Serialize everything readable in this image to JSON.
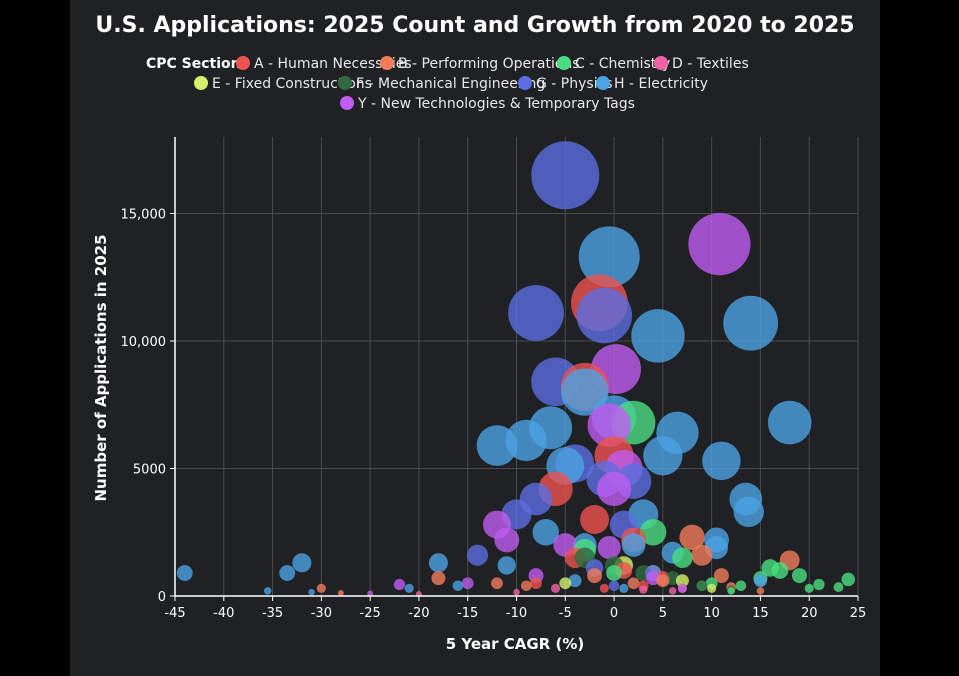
{
  "chart_data": {
    "type": "scatter",
    "title": "U.S. Applications: 2025 Count and Growth from 2020 to 2025",
    "xlabel": "5 Year CAGR (%)",
    "ylabel": "Number of Applications in 2025",
    "xlim": [
      -45,
      25
    ],
    "ylim": [
      0,
      18000
    ],
    "x_ticks": [
      -45,
      -40,
      -35,
      -30,
      -25,
      -20,
      -15,
      -10,
      -5,
      0,
      5,
      10,
      15,
      20,
      25
    ],
    "y_ticks": [
      0,
      5000,
      10000,
      15000
    ],
    "y_tick_labels": [
      "0",
      "5000",
      "10,000",
      "15,000"
    ],
    "x_tick_labels": [
      "-45",
      "-40",
      "-35",
      "-30",
      "-25",
      "-20",
      "-15",
      "-10",
      "-5",
      "0",
      "5",
      "10",
      "15",
      "20",
      "25"
    ],
    "grid": true,
    "legend_title": "CPC Section",
    "legend_placement": "top",
    "size_encodes": "Number of Applications in 2025",
    "series": [
      {
        "name": "A - Human Necessities",
        "color": "#ef5350",
        "points": [
          [
            -1.5,
            11500
          ],
          [
            -3,
            8200
          ],
          [
            0,
            5500
          ],
          [
            -6,
            4200
          ],
          [
            -2,
            3000
          ],
          [
            2,
            2200
          ],
          [
            -4,
            1500
          ],
          [
            1,
            1000
          ],
          [
            5,
            700
          ],
          [
            -8,
            500
          ],
          [
            3,
            400
          ],
          [
            -1,
            300
          ]
        ]
      },
      {
        "name": "B - Performing Operations",
        "color": "#f07c5a",
        "points": [
          [
            8,
            2300
          ],
          [
            9,
            1600
          ],
          [
            18,
            1400
          ],
          [
            -30,
            300
          ],
          [
            -28,
            120
          ],
          [
            -18,
            700
          ],
          [
            -12,
            500
          ],
          [
            -9,
            400
          ],
          [
            -2,
            800
          ],
          [
            2,
            500
          ],
          [
            5,
            600
          ],
          [
            11,
            800
          ],
          [
            12,
            350
          ],
          [
            15,
            200
          ],
          [
            7,
            300
          ]
        ]
      },
      {
        "name": "C - Chemistry",
        "color": "#4ade80",
        "points": [
          [
            2,
            6800
          ],
          [
            4,
            2500
          ],
          [
            7,
            1500
          ],
          [
            10,
            500
          ],
          [
            13,
            400
          ],
          [
            15,
            700
          ],
          [
            16,
            1100
          ],
          [
            17,
            1000
          ],
          [
            19,
            800
          ],
          [
            20,
            300
          ],
          [
            21,
            450
          ],
          [
            23,
            350
          ],
          [
            24,
            650
          ],
          [
            -3,
            1800
          ],
          [
            0,
            900
          ],
          [
            12,
            200
          ],
          [
            9,
            400
          ]
        ]
      },
      {
        "name": "D - Textiles",
        "color": "#f062a8",
        "points": [
          [
            -10,
            150
          ],
          [
            -6,
            300
          ],
          [
            3,
            250
          ],
          [
            6,
            200
          ],
          [
            -20,
            80
          ]
        ]
      },
      {
        "name": "E - Fixed Constructions",
        "color": "#d4f26a",
        "points": [
          [
            1,
            1200
          ],
          [
            4,
            900
          ],
          [
            7,
            600
          ],
          [
            10,
            300
          ],
          [
            -5,
            500
          ]
        ]
      },
      {
        "name": "F - Mechanical Engineering",
        "color": "#2f6b3f",
        "points": [
          [
            -3,
            1500
          ],
          [
            0,
            1200
          ],
          [
            3,
            900
          ],
          [
            6,
            700
          ],
          [
            9,
            400
          ],
          [
            12,
            250
          ]
        ]
      },
      {
        "name": "G - Physics",
        "color": "#5b6ee1",
        "points": [
          [
            -5,
            16500
          ],
          [
            -8,
            11100
          ],
          [
            -1,
            11000
          ],
          [
            -6,
            8400
          ],
          [
            -4,
            5200
          ],
          [
            -1,
            4600
          ],
          [
            2,
            4500
          ],
          [
            -8,
            3800
          ],
          [
            -10,
            3200
          ],
          [
            1,
            2800
          ],
          [
            -14,
            1600
          ],
          [
            -2,
            1100
          ],
          [
            4,
            900
          ],
          [
            0,
            400
          ]
        ]
      },
      {
        "name": "H - Electricity",
        "color": "#4ba3e3",
        "points": [
          [
            -0.5,
            13300
          ],
          [
            4.5,
            10200
          ],
          [
            14,
            10700
          ],
          [
            18,
            6800
          ],
          [
            6.5,
            6400
          ],
          [
            11,
            5300
          ],
          [
            13.5,
            3800
          ],
          [
            13.8,
            3300
          ],
          [
            -12,
            5900
          ],
          [
            -9,
            6100
          ],
          [
            -6.5,
            6600
          ],
          [
            -3,
            8000
          ],
          [
            0,
            7000
          ],
          [
            5,
            5500
          ],
          [
            -5,
            5100
          ],
          [
            3,
            3200
          ],
          [
            -7,
            2500
          ],
          [
            -11,
            1200
          ],
          [
            -44,
            900
          ],
          [
            -33.5,
            900
          ],
          [
            -32,
            1300
          ],
          [
            -18,
            1300
          ],
          [
            -35.5,
            200
          ],
          [
            -31,
            150
          ],
          [
            -21,
            300
          ],
          [
            10.5,
            2200
          ],
          [
            10.5,
            1900
          ],
          [
            15,
            600
          ],
          [
            -16,
            400
          ],
          [
            2,
            2000
          ],
          [
            -3,
            2000
          ],
          [
            6,
            1700
          ],
          [
            -4,
            600
          ],
          [
            1,
            300
          ]
        ]
      },
      {
        "name": "Y - New Technologies & Temporary Tags",
        "color": "#c05cf0",
        "points": [
          [
            10.8,
            13800
          ],
          [
            0.2,
            8900
          ],
          [
            -0.5,
            6700
          ],
          [
            1,
            5000
          ],
          [
            0,
            4200
          ],
          [
            -12,
            2800
          ],
          [
            -11,
            2200
          ],
          [
            -5,
            2000
          ],
          [
            -0.5,
            1900
          ],
          [
            -22,
            450
          ],
          [
            -15,
            500
          ],
          [
            -8,
            800
          ],
          [
            4,
            700
          ],
          [
            7,
            300
          ],
          [
            -25,
            100
          ]
        ]
      }
    ]
  },
  "legend": {
    "title": "CPC Section",
    "items": [
      {
        "label": "A - Human Necessities",
        "color": "#ef5350"
      },
      {
        "label": "B - Performing Operations",
        "color": "#f07c5a"
      },
      {
        "label": "C - Chemistry",
        "color": "#4ade80"
      },
      {
        "label": "D - Textiles",
        "color": "#f062a8"
      },
      {
        "label": "E - Fixed Constructions",
        "color": "#d4f26a"
      },
      {
        "label": "F - Mechanical Engineering",
        "color": "#2f6b3f"
      },
      {
        "label": "G - Physics",
        "color": "#5b6ee1"
      },
      {
        "label": "H - Electricity",
        "color": "#4ba3e3"
      },
      {
        "label": "Y - New Technologies & Temporary Tags",
        "color": "#c05cf0"
      }
    ]
  }
}
